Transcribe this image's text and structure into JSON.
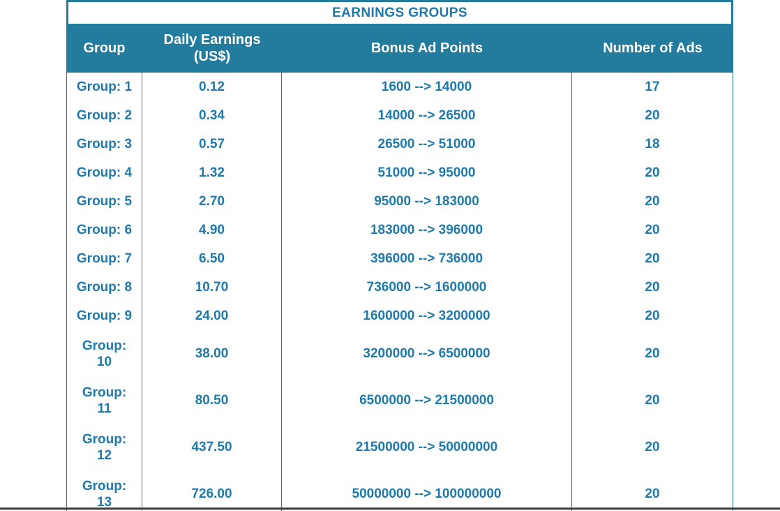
{
  "chart_data": {
    "type": "table",
    "title": "EARNINGS GROUPS",
    "columns": [
      "Group",
      "Daily Earnings (US$)",
      "Bonus Ad Points",
      "Number of Ads"
    ],
    "rows": [
      [
        "Group: 1",
        "0.12",
        "1600 --> 14000",
        "17"
      ],
      [
        "Group: 2",
        "0.34",
        "14000 --> 26500",
        "20"
      ],
      [
        "Group: 3",
        "0.57",
        "26500 --> 51000",
        "18"
      ],
      [
        "Group: 4",
        "1.32",
        "51000 --> 95000",
        "20"
      ],
      [
        "Group: 5",
        "2.70",
        "95000 --> 183000",
        "20"
      ],
      [
        "Group: 6",
        "4.90",
        "183000 --> 396000",
        "20"
      ],
      [
        "Group: 7",
        "6.50",
        "396000 --> 736000",
        "20"
      ],
      [
        "Group: 8",
        "10.70",
        "736000 --> 1600000",
        "20"
      ],
      [
        "Group: 9",
        "24.00",
        "1600000 --> 3200000",
        "20"
      ],
      [
        "Group: 10",
        "38.00",
        "3200000 --> 6500000",
        "20"
      ],
      [
        "Group: 11",
        "80.50",
        "6500000 --> 21500000",
        "20"
      ],
      [
        "Group: 12",
        "437.50",
        "21500000 --> 50000000",
        "20"
      ],
      [
        "Group: 13",
        "726.00",
        "50000000 --> 100000000",
        "20"
      ]
    ],
    "layout_hints": {
      "wrapped_group_rows": [
        "Group: 10",
        "Group: 11",
        "Group: 12",
        "Group: 13"
      ],
      "last_row_clipped_at_bottom": true
    }
  },
  "colors": {
    "header_bg": "#237C9E",
    "text": "#1E7AAC",
    "border": "#237C9E",
    "window_edge": "#3F3F3F",
    "row_bg": "#FFFFFF"
  }
}
